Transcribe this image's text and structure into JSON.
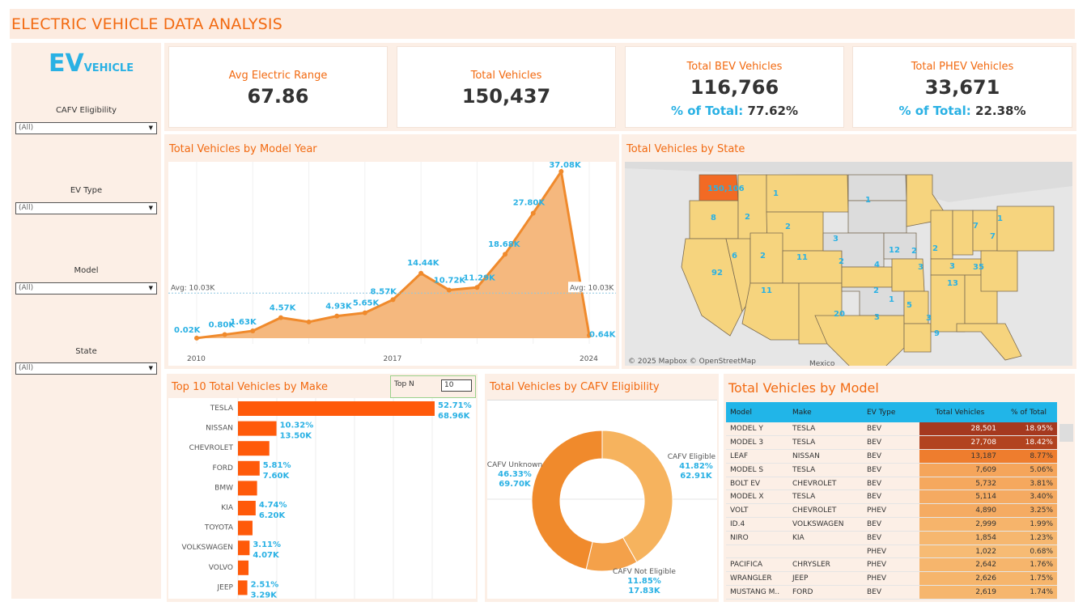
{
  "header": {
    "title": "ELECTRIC VEHICLE DATA ANALYSIS"
  },
  "sidebar": {
    "logo_big": "EV",
    "logo_small": "VEHICLE",
    "filters": [
      {
        "label": "CAFV Eligibility",
        "value": "(All)"
      },
      {
        "label": "EV Type",
        "value": "(All)"
      },
      {
        "label": "Model",
        "value": "(All)"
      },
      {
        "label": "State",
        "value": "(All)"
      }
    ]
  },
  "kpis": {
    "avg_range": {
      "title": "Avg Electric Range",
      "value": "67.86"
    },
    "total_vehicles": {
      "title": "Total Vehicles",
      "value": "150,437"
    },
    "bev": {
      "title": "Total BEV Vehicles",
      "value": "116,766",
      "pct_label": "% of Total:",
      "pct_value": "77.62%"
    },
    "phev": {
      "title": "Total PHEV Vehicles",
      "value": "33,671",
      "pct_label": "% of Total:",
      "pct_value": "22.38%"
    }
  },
  "model_year_chart": {
    "title": "Total Vehicles by Model Year",
    "avg_label_left": "Avg: 10.03K",
    "avg_label_right": "Avg: 10.03K",
    "x_ticks": [
      "2010",
      "2017",
      "2024"
    ]
  },
  "state_map": {
    "title": "Total Vehicles by State",
    "attribution": "© 2025 Mapbox  © OpenStreetMap",
    "mexico_label": "Mexico",
    "labels": [
      {
        "t": "150,106"
      },
      {
        "t": "1"
      },
      {
        "t": "1"
      },
      {
        "t": "8"
      },
      {
        "t": "2"
      },
      {
        "t": "2"
      },
      {
        "t": "7"
      },
      {
        "t": "1"
      },
      {
        "t": "7"
      },
      {
        "t": "3"
      },
      {
        "t": "6"
      },
      {
        "t": "2"
      },
      {
        "t": "11"
      },
      {
        "t": "2"
      },
      {
        "t": "4"
      },
      {
        "t": "12"
      },
      {
        "t": "2"
      },
      {
        "t": "2"
      },
      {
        "t": "3"
      },
      {
        "t": "35"
      },
      {
        "t": "3"
      },
      {
        "t": "92"
      },
      {
        "t": "11"
      },
      {
        "t": "13"
      },
      {
        "t": "2"
      },
      {
        "t": "1"
      },
      {
        "t": "3"
      },
      {
        "t": "5"
      },
      {
        "t": "20"
      },
      {
        "t": "3"
      },
      {
        "t": "9"
      }
    ]
  },
  "make_chart": {
    "title": "Top 10 Total Vehicles by Make",
    "topn_label": "Top N",
    "topn_value": "10"
  },
  "cafv_chart": {
    "title": "Total Vehicles by CAFV Eligibility",
    "slices": [
      {
        "name": "CAFV Eligible",
        "pct": "41.82%",
        "count": "62.91K",
        "value": 41.82,
        "color": "#f6b35e"
      },
      {
        "name": "CAFV Not Eligible",
        "pct": "11.85%",
        "count": "17.83K",
        "value": 11.85,
        "color": "#f4a14a"
      },
      {
        "name": "CAFV Unknown",
        "pct": "46.33%",
        "count": "69.70K",
        "value": 46.33,
        "color": "#f08a2c"
      }
    ]
  },
  "model_table": {
    "title": "Total Vehicles by Model",
    "headers": [
      "Model",
      "Make",
      "EV Type",
      "Total Vehicles",
      "% of Total"
    ],
    "rows": [
      [
        "MODEL Y",
        "TESLA",
        "BEV",
        "28,501",
        "18.95%"
      ],
      [
        "MODEL 3",
        "TESLA",
        "BEV",
        "27,708",
        "18.42%"
      ],
      [
        "LEAF",
        "NISSAN",
        "BEV",
        "13,187",
        "8.77%"
      ],
      [
        "MODEL S",
        "TESLA",
        "BEV",
        "7,609",
        "5.06%"
      ],
      [
        "BOLT EV",
        "CHEVROLET",
        "BEV",
        "5,732",
        "3.81%"
      ],
      [
        "MODEL X",
        "TESLA",
        "BEV",
        "5,114",
        "3.40%"
      ],
      [
        "VOLT",
        "CHEVROLET",
        "PHEV",
        "4,890",
        "3.25%"
      ],
      [
        "ID.4",
        "VOLKSWAGEN",
        "BEV",
        "2,999",
        "1.99%"
      ],
      [
        "NIRO",
        "KIA",
        "BEV",
        "1,854",
        "1.23%"
      ],
      [
        "",
        "",
        "PHEV",
        "1,022",
        "0.68%"
      ],
      [
        "PACIFICA",
        "CHRYSLER",
        "PHEV",
        "2,642",
        "1.76%"
      ],
      [
        "WRANGLER",
        "JEEP",
        "PHEV",
        "2,626",
        "1.75%"
      ],
      [
        "MUSTANG M..",
        "FORD",
        "BEV",
        "2,619",
        "1.74%"
      ]
    ],
    "row_colors": [
      "#a5391f",
      "#b2431f",
      "#ee7d2e",
      "#f5a55b",
      "#f5a85e",
      "#f5aa61",
      "#f5ab62",
      "#f6b46b",
      "#f6b76f",
      "#f7bb74",
      "#f6b56c",
      "#f6b56c",
      "#f6b66d"
    ]
  },
  "chart_data": [
    {
      "type": "area",
      "title": "Total Vehicles by Model Year",
      "x": [
        2010,
        2011,
        2012,
        2013,
        2014,
        2015,
        2016,
        2017,
        2018,
        2019,
        2020,
        2021,
        2022,
        2023,
        2024
      ],
      "values": [
        0.02,
        0.8,
        1.63,
        4.57,
        3.62,
        4.93,
        5.65,
        8.57,
        14.44,
        10.72,
        11.29,
        18.68,
        27.8,
        37.08,
        0.64
      ],
      "labels": [
        "0.02K",
        "0.80K",
        "1.63K",
        "4.57K",
        "",
        "4.93K",
        "5.65K",
        "8.57K",
        "14.44K",
        "10.72K",
        "11.29K",
        "18.68K",
        "27.80K",
        "37.08K",
        "0.64K"
      ],
      "ylim": [
        0,
        37.08
      ],
      "reference_line": 10.03,
      "color": "#f08a2c"
    },
    {
      "type": "bar",
      "orientation": "horizontal",
      "title": "Top 10 Total Vehicles by Make",
      "categories": [
        "TESLA",
        "NISSAN",
        "CHEVROLET",
        "FORD",
        "BMW",
        "KIA",
        "TOYOTA",
        "VOLKSWAGEN",
        "VOLVO",
        "JEEP"
      ],
      "values": [
        68.96,
        13.5,
        11.0,
        7.6,
        6.7,
        6.2,
        5.1,
        4.07,
        3.7,
        3.29
      ],
      "labels_pct": [
        "52.71%",
        "10.32%",
        "",
        "5.81%",
        "",
        "4.74%",
        "",
        "3.11%",
        "",
        "2.51%"
      ],
      "labels_val": [
        "68.96K",
        "13.50K",
        "",
        "7.60K",
        "",
        "6.20K",
        "",
        "4.07K",
        "",
        "3.29K"
      ],
      "color": "#ff5a0a"
    },
    {
      "type": "pie",
      "title": "Total Vehicles by CAFV Eligibility",
      "categories": [
        "CAFV Eligible",
        "CAFV Not Eligible",
        "CAFV Unknown"
      ],
      "values": [
        41.82,
        11.85,
        46.33
      ]
    }
  ]
}
